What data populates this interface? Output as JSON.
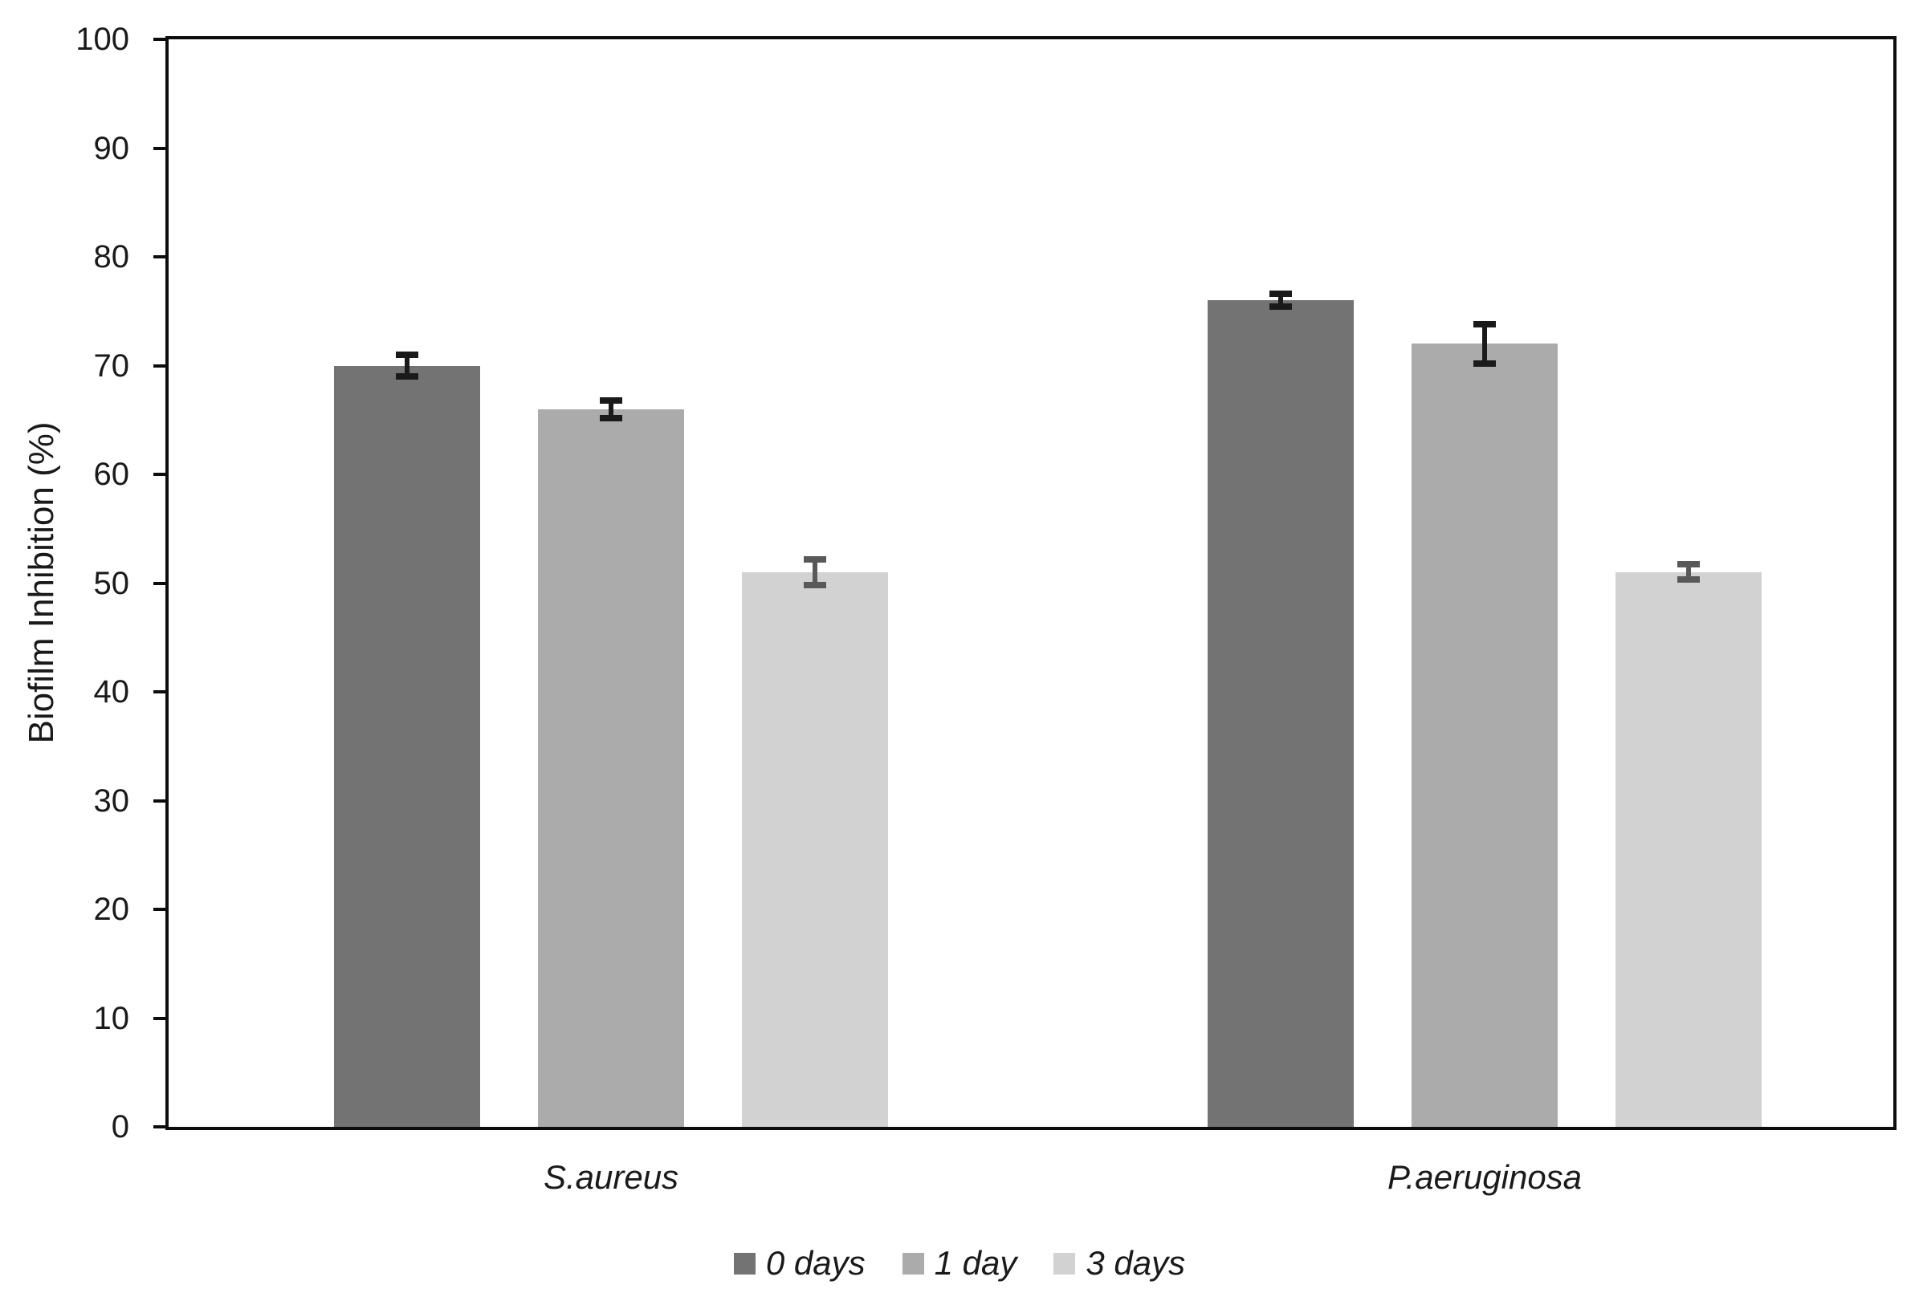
{
  "chart_data": {
    "type": "bar",
    "title": "",
    "xlabel": "",
    "ylabel": "Biofilm Inhibition (%)",
    "ylim": [
      0,
      100
    ],
    "yticks": [
      0,
      10,
      20,
      30,
      40,
      50,
      60,
      70,
      80,
      90,
      100
    ],
    "grid": false,
    "legend_position": "bottom-center",
    "categories": [
      "S.aureus",
      "P.aeruginosa"
    ],
    "series": [
      {
        "name": "0 days",
        "color": "#737373",
        "error_color": "#1a1a1a",
        "values": [
          70,
          76
        ],
        "errors": [
          1.0,
          0.6
        ]
      },
      {
        "name": "1 day",
        "color": "#ABABAB",
        "error_color": "#1a1a1a",
        "values": [
          66,
          72
        ],
        "errors": [
          0.8,
          1.8
        ]
      },
      {
        "name": "3 days",
        "color": "#D2D2D2",
        "error_color": "#595959",
        "values": [
          51,
          51
        ],
        "errors": [
          1.2,
          0.7
        ]
      }
    ],
    "axis_color": "#0d0d0d"
  }
}
